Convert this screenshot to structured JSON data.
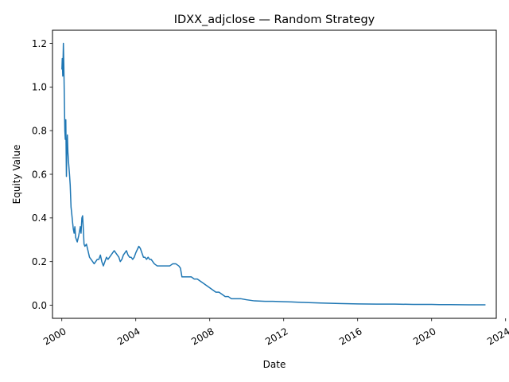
{
  "chart_data": {
    "type": "line",
    "title": "IDXX_adjclose — Random Strategy",
    "xlabel": "Date",
    "ylabel": "Equity Value",
    "xlim": [
      "1999-07-01",
      "2023-07-01"
    ],
    "ylim": [
      -0.06,
      1.26
    ],
    "x_ticks": [
      "2000",
      "2004",
      "2008",
      "2012",
      "2016",
      "2020",
      "2024"
    ],
    "y_ticks": [
      "0.0",
      "0.2",
      "0.4",
      "0.6",
      "0.8",
      "1.0",
      "1.2"
    ],
    "grid": false,
    "line_color": "#1f77b4",
    "series": [
      {
        "x": [
          "2000-01-03",
          "2000-01-10",
          "2000-01-20",
          "2000-02-01",
          "2000-02-10",
          "2000-02-20",
          "2000-03-01",
          "2000-03-10",
          "2000-03-20",
          "2000-04-01",
          "2000-04-10",
          "2000-04-20",
          "2000-05-01",
          "2000-05-15",
          "2000-06-01",
          "2000-06-15",
          "2000-07-01",
          "2000-07-15",
          "2000-08-01",
          "2000-08-15",
          "2000-09-01",
          "2000-09-15",
          "2000-10-01",
          "2000-11-01",
          "2000-12-01",
          "2001-01-01",
          "2001-01-15",
          "2001-02-01",
          "2001-02-15",
          "2001-03-01",
          "2001-03-15",
          "2001-04-01",
          "2001-05-01",
          "2001-06-01",
          "2001-07-01",
          "2001-08-01",
          "2001-09-01",
          "2001-10-01",
          "2001-11-01",
          "2001-12-01",
          "2002-01-01",
          "2002-02-01",
          "2002-03-01",
          "2002-04-01",
          "2002-05-01",
          "2002-06-01",
          "2002-07-01",
          "2002-08-01",
          "2002-09-01",
          "2002-10-01",
          "2002-11-01",
          "2002-12-01",
          "2003-01-01",
          "2003-02-01",
          "2003-03-01",
          "2003-04-01",
          "2003-05-01",
          "2003-06-01",
          "2003-07-01",
          "2003-08-01",
          "2003-09-01",
          "2003-10-01",
          "2003-11-01",
          "2003-12-01",
          "2004-01-01",
          "2004-03-01",
          "2004-04-01",
          "2004-05-01",
          "2004-06-01",
          "2004-07-01",
          "2004-08-01",
          "2004-09-01",
          "2004-10-01",
          "2004-11-01",
          "2004-12-01",
          "2005-01-01",
          "2005-03-01",
          "2005-05-01",
          "2005-07-01",
          "2005-09-01",
          "2005-11-01",
          "2006-01-01",
          "2006-03-01",
          "2006-05-01",
          "2006-06-01",
          "2006-07-01",
          "2006-09-01",
          "2006-11-01",
          "2007-01-01",
          "2007-03-01",
          "2007-05-01",
          "2007-07-01",
          "2007-09-01",
          "2007-11-01",
          "2008-01-01",
          "2008-03-01",
          "2008-05-01",
          "2008-07-01",
          "2008-09-01",
          "2008-11-01",
          "2009-01-01",
          "2009-03-01",
          "2009-06-01",
          "2009-09-01",
          "2010-01-01",
          "2010-06-01",
          "2011-01-01",
          "2011-06-01",
          "2012-01-01",
          "2012-06-01",
          "2013-01-01",
          "2014-01-01",
          "2015-01-01",
          "2016-01-01",
          "2017-01-01",
          "2018-01-01",
          "2019-01-01",
          "2020-01-01",
          "2020-06-01",
          "2021-01-01",
          "2022-01-01",
          "2022-11-30"
        ],
        "y": [
          1.08,
          1.13,
          1.05,
          1.2,
          1.1,
          0.95,
          0.8,
          0.76,
          0.85,
          0.59,
          0.72,
          0.78,
          0.7,
          0.65,
          0.6,
          0.55,
          0.45,
          0.42,
          0.38,
          0.35,
          0.33,
          0.36,
          0.31,
          0.29,
          0.32,
          0.36,
          0.33,
          0.4,
          0.41,
          0.35,
          0.28,
          0.27,
          0.28,
          0.25,
          0.22,
          0.21,
          0.2,
          0.19,
          0.2,
          0.21,
          0.21,
          0.23,
          0.2,
          0.18,
          0.2,
          0.22,
          0.21,
          0.22,
          0.23,
          0.24,
          0.25,
          0.24,
          0.23,
          0.22,
          0.2,
          0.21,
          0.23,
          0.24,
          0.25,
          0.23,
          0.22,
          0.22,
          0.21,
          0.22,
          0.24,
          0.27,
          0.26,
          0.24,
          0.22,
          0.22,
          0.21,
          0.22,
          0.21,
          0.21,
          0.2,
          0.19,
          0.18,
          0.18,
          0.18,
          0.18,
          0.18,
          0.19,
          0.19,
          0.18,
          0.17,
          0.13,
          0.13,
          0.13,
          0.13,
          0.12,
          0.12,
          0.11,
          0.1,
          0.09,
          0.08,
          0.07,
          0.06,
          0.06,
          0.05,
          0.04,
          0.04,
          0.03,
          0.03,
          0.03,
          0.025,
          0.02,
          0.018,
          0.018,
          0.016,
          0.015,
          0.013,
          0.01,
          0.008,
          0.006,
          0.005,
          0.005,
          0.004,
          0.004,
          0.003,
          0.003,
          0.002,
          0.002
        ]
      }
    ]
  }
}
